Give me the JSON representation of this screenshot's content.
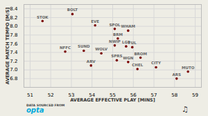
{
  "chart_data": {
    "type": "scatter",
    "xlabel": "AVERAGE EFFECTIVE PLAY [MINS]",
    "ylabel": "AVERAGE MATCH TEMPO [M/S]",
    "labels": [
      "STOK",
      "BOLT",
      "EVE",
      "NFFC",
      "SUND",
      "WOLV",
      "ARV",
      "SPOL",
      "WHAM",
      "BRM",
      "NWIP",
      "LGE",
      "FUL",
      "SPRS",
      "WGN",
      "BROM",
      "CHEL",
      "CITY",
      "ARS",
      "MUTO"
    ],
    "x": [
      51.6,
      53.05,
      54.15,
      52.7,
      53.6,
      54.45,
      53.95,
      55.1,
      55.75,
      55.25,
      55.1,
      55.65,
      55.95,
      55.2,
      55.75,
      56.35,
      56.2,
      57.1,
      58.1,
      58.65
    ],
    "values": [
      8.12,
      8.28,
      8.02,
      7.42,
      7.44,
      7.38,
      7.1,
      7.94,
      7.9,
      7.72,
      7.56,
      7.54,
      7.52,
      7.22,
      7.18,
      7.28,
      7.02,
      7.06,
      6.8,
      6.96
    ],
    "color": "#7a0000",
    "xlim": [
      50.7,
      59.3
    ],
    "ylim": [
      6.6,
      8.5
    ],
    "xticks": [
      51,
      52,
      53,
      54,
      55,
      56,
      57,
      58,
      59
    ],
    "yticks": [
      6.8,
      {
        "value": 7.0,
        "label": "7.0"
      },
      7.2,
      7.4,
      7.6,
      7.8,
      {
        "value": 8.0,
        "label": "8.0"
      },
      8.2,
      8.4
    ],
    "grid": true,
    "annotations": [
      "DATA SOURCED FROM",
      "opta",
      "♫"
    ]
  }
}
